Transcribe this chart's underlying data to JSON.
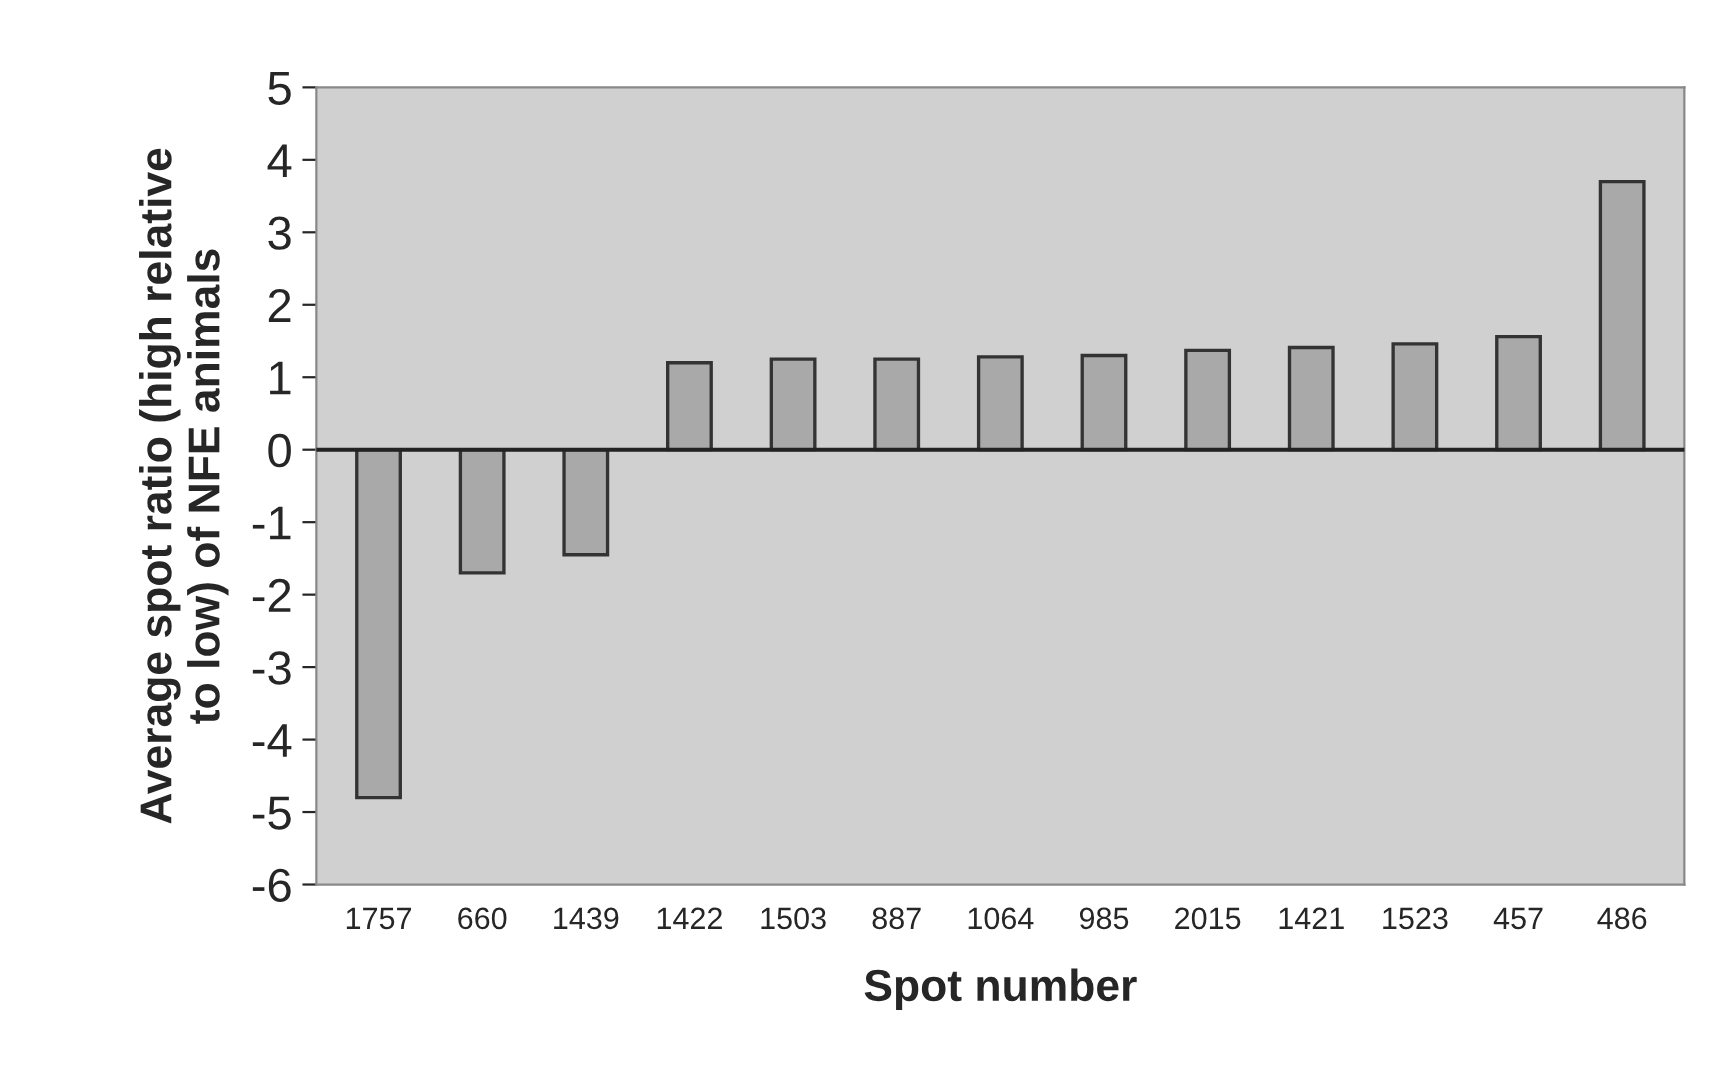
{
  "chart_data": {
    "type": "bar",
    "xlabel": "Spot number",
    "ylabel": "Average spot ratio (high relative\nto low) of NFE animals",
    "categories": [
      "1757",
      "660",
      "1439",
      "1422",
      "1503",
      "887",
      "1064",
      "985",
      "2015",
      "1421",
      "1523",
      "457",
      "486"
    ],
    "values": [
      -4.8,
      -1.7,
      -1.45,
      1.2,
      1.25,
      1.25,
      1.28,
      1.3,
      1.37,
      1.41,
      1.46,
      1.56,
      3.7
    ],
    "color": "#a9a9a9",
    "ylim": [
      -6,
      5
    ],
    "yticks": [
      -6,
      -5,
      -4,
      -3,
      -2,
      -1,
      0,
      1,
      2,
      3,
      4,
      5
    ],
    "ref_lines": [
      {
        "axis": "y",
        "value": 0,
        "color": "#222222"
      }
    ],
    "legend": false
  }
}
